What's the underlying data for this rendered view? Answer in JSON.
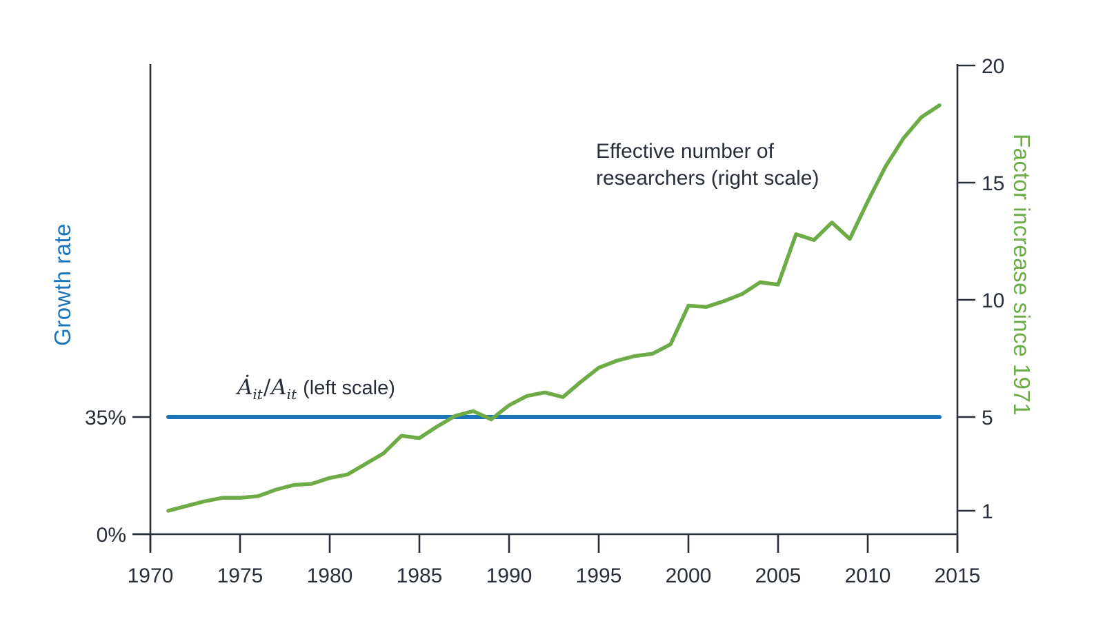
{
  "colors": {
    "blue": "#1b75bc",
    "green": "#6dab47",
    "text_dark": "#282e38",
    "axis": "#282e38"
  },
  "annotations": {
    "researchers_line1": "Effective number of",
    "researchers_line2": "researchers (right scale)",
    "formula_numerator": "Ȧ",
    "formula_numerator_sub": "it",
    "formula_slash": "/",
    "formula_denominator": "A",
    "formula_denominator_sub": "it",
    "formula_suffix": "(left scale)"
  },
  "chart_data": {
    "type": "line",
    "title": "",
    "x_axis": {
      "ticks": [
        1970,
        1975,
        1980,
        1985,
        1990,
        1995,
        2000,
        2005,
        2010,
        2015
      ],
      "range": [
        1970,
        2015
      ]
    },
    "left_axis": {
      "title": "Growth rate",
      "ticks": [
        {
          "label": "0%",
          "value": 0
        },
        {
          "label": "35%",
          "value": 35
        }
      ],
      "range_percent": [
        0,
        35
      ]
    },
    "right_axis": {
      "title": "Factor increase since 1971",
      "ticks": [
        1,
        5,
        10,
        15,
        20
      ],
      "range": [
        1,
        20
      ]
    },
    "x": [
      1971,
      1972,
      1973,
      1974,
      1975,
      1976,
      1977,
      1978,
      1979,
      1980,
      1981,
      1982,
      1983,
      1984,
      1985,
      1986,
      1987,
      1988,
      1989,
      1990,
      1991,
      1992,
      1993,
      1994,
      1995,
      1996,
      1997,
      1998,
      1999,
      2000,
      2001,
      2002,
      2003,
      2004,
      2005,
      2006,
      2007,
      2008,
      2009,
      2010,
      2011,
      2012,
      2013,
      2014
    ],
    "series": [
      {
        "name": "Ȧit/Ait (left scale)",
        "axis": "left",
        "style": "constant",
        "value": 35,
        "x_start": 1971,
        "x_end": 2014,
        "color_key": "blue"
      },
      {
        "name": "Effective number of researchers (right scale)",
        "axis": "right",
        "color_key": "green",
        "values": [
          1.0,
          1.2,
          1.4,
          1.55,
          1.55,
          1.62,
          1.9,
          2.1,
          2.15,
          2.4,
          2.55,
          3.0,
          3.45,
          4.2,
          4.1,
          4.6,
          5.05,
          5.25,
          4.9,
          5.5,
          5.9,
          6.05,
          5.85,
          6.5,
          7.1,
          7.4,
          7.6,
          7.7,
          8.1,
          9.75,
          9.7,
          9.95,
          10.25,
          10.75,
          10.65,
          12.8,
          12.55,
          13.3,
          12.6,
          14.2,
          15.7,
          16.9,
          17.8,
          18.3
        ]
      }
    ]
  }
}
